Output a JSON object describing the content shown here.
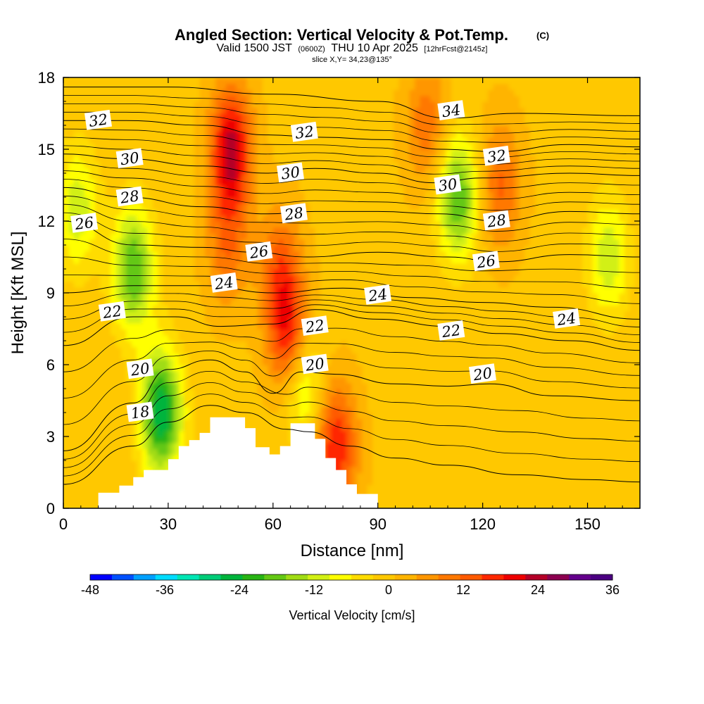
{
  "title": {
    "main": "Angled Section: Vertical Velocity & Pot.Temp.",
    "main_sup": "(C)",
    "valid_a": "Valid 1500 JST",
    "valid_b": "(0600Z)",
    "valid_c": "THU 10 Apr 2025",
    "valid_d": "[12hrFcst@2145z]",
    "slice": "slice X,Y= 34,23@135°"
  },
  "chart_data": {
    "type": "heatmap",
    "xlabel": "Distance [nm]",
    "ylabel": "Height [Kft MSL]",
    "xlim": [
      0,
      165
    ],
    "ylim": [
      0,
      18
    ],
    "xticks": [
      "0",
      "30",
      "60",
      "90",
      "120",
      "150"
    ],
    "yticks": [
      "0",
      "3",
      "6",
      "9",
      "12",
      "15",
      "18"
    ],
    "shading_variable": "Vertical Velocity [cm/s]",
    "colorbar": {
      "label": "Vertical Velocity [cm/s]",
      "min": -48,
      "max": 36,
      "step": 4,
      "tick_labels": [
        "-48",
        "-36",
        "-24",
        "-12",
        "0",
        "12",
        "24",
        "36"
      ],
      "colors": [
        "#0000ff",
        "#0050ff",
        "#00a0ff",
        "#00dcff",
        "#00e6b4",
        "#00cc78",
        "#00b43c",
        "#28b414",
        "#64c814",
        "#a0dc14",
        "#d2f014",
        "#ffff00",
        "#ffdc00",
        "#ffc800",
        "#ffb400",
        "#ff9600",
        "#ff7800",
        "#ff5a00",
        "#ff2800",
        "#ee0000",
        "#b40028",
        "#8c0050",
        "#64008c",
        "#4b0082"
      ]
    },
    "terrain_profile_kft": [
      [
        0,
        0
      ],
      [
        10,
        0
      ],
      [
        10,
        0.65
      ],
      [
        16,
        0.65
      ],
      [
        16,
        0.95
      ],
      [
        20,
        0.95
      ],
      [
        20,
        1.3
      ],
      [
        23,
        1.3
      ],
      [
        23,
        1.6
      ],
      [
        30,
        1.6
      ],
      [
        30,
        2.05
      ],
      [
        33,
        2.05
      ],
      [
        33,
        2.6
      ],
      [
        36,
        2.6
      ],
      [
        36,
        2.85
      ],
      [
        39,
        2.85
      ],
      [
        39,
        3.15
      ],
      [
        42,
        3.15
      ],
      [
        42,
        3.8
      ],
      [
        52,
        3.8
      ],
      [
        52,
        3.35
      ],
      [
        55,
        3.35
      ],
      [
        55,
        2.55
      ],
      [
        59,
        2.55
      ],
      [
        59,
        2.25
      ],
      [
        62,
        2.25
      ],
      [
        62,
        2.6
      ],
      [
        65,
        2.6
      ],
      [
        65,
        3.55
      ],
      [
        72,
        3.55
      ],
      [
        72,
        2.9
      ],
      [
        75,
        2.9
      ],
      [
        75,
        2.1
      ],
      [
        78,
        2.1
      ],
      [
        78,
        1.6
      ],
      [
        81,
        1.6
      ],
      [
        81,
        1.0
      ],
      [
        84,
        1.0
      ],
      [
        84,
        0.6
      ],
      [
        90,
        0.6
      ],
      [
        90,
        0
      ],
      [
        165,
        0
      ]
    ],
    "velocity_features": [
      {
        "x": 48,
        "y": 15.0,
        "value": 36
      },
      {
        "x": 47,
        "y": 11.0,
        "value": 20
      },
      {
        "x": 62,
        "y": 10.0,
        "value": 22
      },
      {
        "x": 65,
        "y": 7.0,
        "value": 34
      },
      {
        "x": 78,
        "y": 2.6,
        "value": 30
      },
      {
        "x": 104,
        "y": 16.0,
        "value": 20
      },
      {
        "x": 125,
        "y": 13.5,
        "value": 22
      },
      {
        "x": 20,
        "y": 10.0,
        "value": -18
      },
      {
        "x": 28,
        "y": 4.0,
        "value": -26
      },
      {
        "x": 113,
        "y": 13.0,
        "value": -18
      },
      {
        "x": 68,
        "y": 5.5,
        "value": -14
      },
      {
        "x": 156,
        "y": 10.5,
        "value": -8
      },
      {
        "x": 4,
        "y": 12.5,
        "value": -8
      },
      {
        "x": 94,
        "y": 7.0,
        "value": 6
      },
      {
        "x": 140,
        "y": 4.0,
        "value": 8
      }
    ],
    "isentropes": [
      {
        "label": "18",
        "points": [
          [
            0,
            1.0
          ],
          [
            20,
            2.6
          ],
          [
            30,
            3.6
          ],
          [
            42,
            4.3
          ],
          [
            52,
            4.0
          ],
          [
            64,
            3.3
          ],
          [
            70,
            3.2
          ],
          [
            82,
            2.6
          ],
          [
            95,
            2.1
          ],
          [
            110,
            1.8
          ],
          [
            130,
            1.4
          ],
          [
            150,
            1.2
          ],
          [
            165,
            1.1
          ]
        ],
        "label_at": [
          20,
          3.9
        ]
      },
      {
        "label": "20",
        "points": [
          [
            0,
            2.4
          ],
          [
            20,
            4.4
          ],
          [
            30,
            5.8
          ],
          [
            42,
            6.2
          ],
          [
            52,
            5.7
          ],
          [
            60,
            4.8
          ],
          [
            68,
            5.7
          ],
          [
            78,
            5.6
          ],
          [
            95,
            5.2
          ],
          [
            110,
            5.1
          ],
          [
            122,
            5.2
          ],
          [
            140,
            4.7
          ],
          [
            165,
            4.5
          ]
        ],
        "label_at": [
          73,
          6.0
        ]
      },
      {
        "label": "22",
        "points": [
          [
            0,
            6.8
          ],
          [
            20,
            8.0
          ],
          [
            32,
            8.0
          ],
          [
            45,
            7.6
          ],
          [
            60,
            7.7
          ],
          [
            72,
            8.3
          ],
          [
            90,
            7.9
          ],
          [
            110,
            7.6
          ],
          [
            125,
            7.3
          ],
          [
            145,
            7.0
          ],
          [
            165,
            6.6
          ]
        ],
        "label_at": [
          76,
          7.7
        ]
      },
      {
        "label": "24",
        "points": [
          [
            0,
            9.0
          ],
          [
            20,
            9.3
          ],
          [
            40,
            9.3
          ],
          [
            60,
            9.0
          ],
          [
            80,
            9.2
          ],
          [
            100,
            8.8
          ],
          [
            120,
            8.6
          ],
          [
            140,
            8.4
          ],
          [
            165,
            7.9
          ]
        ],
        "label_at": [
          96,
          8.9
        ]
      },
      {
        "label": "26",
        "points": [
          [
            0,
            12.0
          ],
          [
            20,
            11.0
          ],
          [
            40,
            10.9
          ],
          [
            54,
            10.7
          ],
          [
            70,
            10.5
          ],
          [
            90,
            10.7
          ],
          [
            110,
            10.5
          ],
          [
            124,
            10.3
          ],
          [
            145,
            10.6
          ],
          [
            165,
            10.5
          ]
        ],
        "label_at": [
          54,
          10.7
        ]
      },
      {
        "label": "28",
        "points": [
          [
            0,
            13.4
          ],
          [
            18,
            13.0
          ],
          [
            40,
            12.6
          ],
          [
            58,
            12.3
          ],
          [
            72,
            12.4
          ],
          [
            90,
            12.4
          ],
          [
            108,
            12.3
          ],
          [
            124,
            12.0
          ],
          [
            145,
            12.4
          ],
          [
            165,
            12.3
          ]
        ],
        "label_at": [
          58,
          12.4
        ]
      },
      {
        "label": "30",
        "points": [
          [
            0,
            14.8
          ],
          [
            18,
            14.6
          ],
          [
            40,
            14.3
          ],
          [
            58,
            14.0
          ],
          [
            72,
            14.2
          ],
          [
            90,
            14.0
          ],
          [
            106,
            13.6
          ],
          [
            120,
            13.8
          ],
          [
            145,
            14.0
          ],
          [
            165,
            13.9
          ]
        ],
        "label_at": [
          58,
          14.0
        ]
      },
      {
        "label": "32",
        "points": [
          [
            0,
            16.2
          ],
          [
            18,
            16.2
          ],
          [
            40,
            16.0
          ],
          [
            58,
            15.6
          ],
          [
            74,
            15.5
          ],
          [
            92,
            15.4
          ],
          [
            108,
            15.0
          ],
          [
            124,
            14.9
          ],
          [
            145,
            15.2
          ],
          [
            165,
            15.1
          ]
        ],
        "label_at": [
          68,
          15.7
        ]
      },
      {
        "label": "34",
        "points": [
          [
            0,
            17.6
          ],
          [
            30,
            17.6
          ],
          [
            60,
            17.3
          ],
          [
            90,
            17.0
          ],
          [
            110,
            16.3
          ],
          [
            130,
            16.5
          ],
          [
            165,
            16.4
          ]
        ],
        "label_at": [
          110,
          16.2
        ]
      }
    ],
    "label_positions": [
      {
        "text": "32",
        "x": 10,
        "y": 16.2
      },
      {
        "text": "30",
        "x": 19,
        "y": 14.6
      },
      {
        "text": "28",
        "x": 19,
        "y": 13.0
      },
      {
        "text": "26",
        "x": 6,
        "y": 11.9
      },
      {
        "text": "22",
        "x": 14,
        "y": 8.2
      },
      {
        "text": "20",
        "x": 22,
        "y": 5.8
      },
      {
        "text": "18",
        "x": 22,
        "y": 4.0
      },
      {
        "text": "32",
        "x": 69,
        "y": 15.7
      },
      {
        "text": "30",
        "x": 65,
        "y": 14.0
      },
      {
        "text": "28",
        "x": 66,
        "y": 12.3
      },
      {
        "text": "26",
        "x": 56,
        "y": 10.7
      },
      {
        "text": "24",
        "x": 46,
        "y": 9.4
      },
      {
        "text": "22",
        "x": 72,
        "y": 7.6
      },
      {
        "text": "20",
        "x": 72,
        "y": 6.0
      },
      {
        "text": "24",
        "x": 90,
        "y": 8.9
      },
      {
        "text": "34",
        "x": 111,
        "y": 16.6
      },
      {
        "text": "30",
        "x": 110,
        "y": 13.5
      },
      {
        "text": "32",
        "x": 124,
        "y": 14.7
      },
      {
        "text": "28",
        "x": 124,
        "y": 12.0
      },
      {
        "text": "26",
        "x": 121,
        "y": 10.3
      },
      {
        "text": "22",
        "x": 111,
        "y": 7.4
      },
      {
        "text": "20",
        "x": 120,
        "y": 5.6
      },
      {
        "text": "24",
        "x": 144,
        "y": 7.9
      }
    ]
  }
}
